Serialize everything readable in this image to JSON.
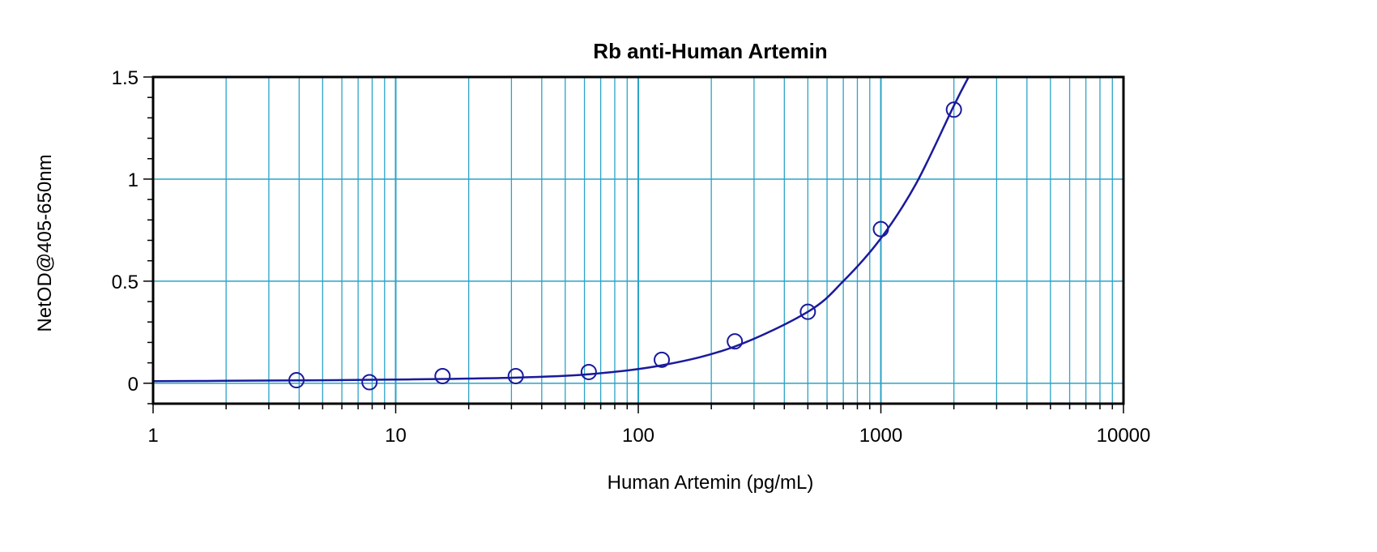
{
  "chart_data": {
    "type": "scatter",
    "title": "Rb anti-Human Artemin",
    "xlabel": "Human Artemin (pg/mL)",
    "ylabel": "NetOD@405-650nm",
    "x_scale": "log",
    "xlim": [
      1,
      10000
    ],
    "ylim": [
      -0.1,
      1.5
    ],
    "x_ticks": [
      "1",
      "10",
      "100",
      "1000",
      "10000"
    ],
    "y_ticks": [
      "0",
      "0.5",
      "1",
      "1.5"
    ],
    "grid": true,
    "colors": {
      "series": "#1a1a9c",
      "grid": "#2aa3c8",
      "frame": "#000000"
    },
    "series": [
      {
        "x": [
          3.9,
          7.8,
          15.6,
          31.25,
          62.5,
          125,
          250,
          500,
          1000,
          2000
        ],
        "y": [
          0.015,
          0.005,
          0.035,
          0.035,
          0.055,
          0.115,
          0.205,
          0.35,
          0.755,
          1.34
        ]
      }
    ],
    "fit_curve": {
      "x": [
        1,
        2,
        4,
        8,
        16,
        32,
        64,
        128,
        250,
        500,
        700,
        1000,
        1400,
        2000,
        2300
      ],
      "y": [
        0.01,
        0.012,
        0.014,
        0.017,
        0.021,
        0.028,
        0.045,
        0.09,
        0.18,
        0.35,
        0.5,
        0.71,
        0.98,
        1.36,
        1.5
      ]
    }
  }
}
